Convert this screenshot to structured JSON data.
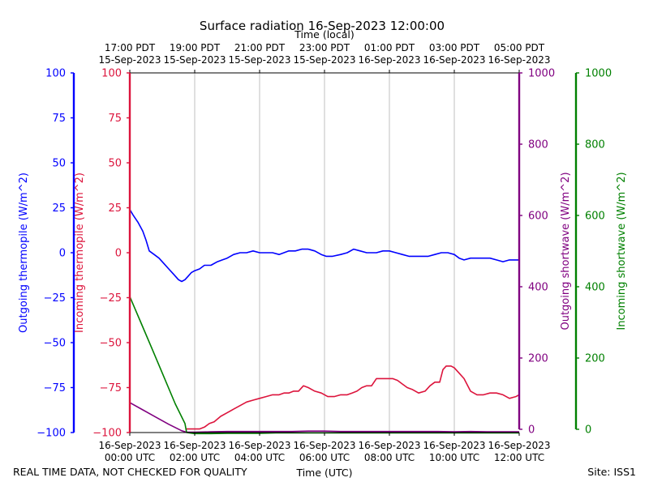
{
  "chart_data": {
    "type": "line",
    "title": "Surface radiation 16-Sep-2023 12:00:00",
    "top_axis_label": "Time (local)",
    "bottom_axis_label": "Time (UTC)",
    "footer_left": "REAL TIME DATA, NOT CHECKED FOR QUALITY",
    "footer_right": "Site: ISS1",
    "xlim_hours_utc": [
      0,
      12
    ],
    "x_ticks_utc": [
      {
        "h": 0,
        "date": "16-Sep-2023",
        "time": "00:00 UTC"
      },
      {
        "h": 2,
        "date": "16-Sep-2023",
        "time": "02:00 UTC"
      },
      {
        "h": 4,
        "date": "16-Sep-2023",
        "time": "04:00 UTC"
      },
      {
        "h": 6,
        "date": "16-Sep-2023",
        "time": "06:00 UTC"
      },
      {
        "h": 8,
        "date": "16-Sep-2023",
        "time": "08:00 UTC"
      },
      {
        "h": 10,
        "date": "16-Sep-2023",
        "time": "10:00 UTC"
      },
      {
        "h": 12,
        "date": "16-Sep-2023",
        "time": "12:00 UTC"
      }
    ],
    "x_ticks_local": [
      {
        "h": 0,
        "time": "17:00 PDT",
        "date": "15-Sep-2023"
      },
      {
        "h": 2,
        "time": "19:00 PDT",
        "date": "15-Sep-2023"
      },
      {
        "h": 4,
        "time": "21:00 PDT",
        "date": "15-Sep-2023"
      },
      {
        "h": 6,
        "time": "23:00 PDT",
        "date": "15-Sep-2023"
      },
      {
        "h": 8,
        "time": "01:00 PDT",
        "date": "16-Sep-2023"
      },
      {
        "h": 10,
        "time": "03:00 PDT",
        "date": "16-Sep-2023"
      },
      {
        "h": 12,
        "time": "05:00 PDT",
        "date": "16-Sep-2023"
      }
    ],
    "axes": [
      {
        "id": "out_thermo",
        "label": "Outgoing thermopile (W/m^2)",
        "color": "#0000ff",
        "ylim": [
          -100,
          100
        ],
        "ticks": [
          -100,
          -75,
          -50,
          -25,
          0,
          25,
          50,
          75,
          100
        ],
        "tick_labels": [
          "−100",
          "−75",
          "−50",
          "−25",
          "0",
          "25",
          "50",
          "75",
          "100"
        ]
      },
      {
        "id": "in_thermo",
        "label": "Incoming thermopile (W/m^2)",
        "color": "#dc143c",
        "ylim": [
          -100,
          100
        ],
        "ticks": [
          -100,
          -75,
          -50,
          -25,
          0,
          25,
          50,
          75,
          100
        ],
        "tick_labels": [
          "−100",
          "−75",
          "−50",
          "−25",
          "0",
          "25",
          "50",
          "75",
          "100"
        ]
      },
      {
        "id": "out_sw",
        "label": "Outgoing shortwave (W/m^2)",
        "color": "#800080",
        "ylim": [
          0,
          1000
        ],
        "ticks": [
          0,
          200,
          400,
          600,
          800,
          1000
        ],
        "tick_labels": [
          "0",
          "200",
          "400",
          "600",
          "800",
          "1000"
        ]
      },
      {
        "id": "in_sw",
        "label": "Incoming shortwave (W/m^2)",
        "color": "#008000",
        "ylim": [
          0,
          1000
        ],
        "ticks": [
          0,
          200,
          400,
          600,
          800,
          1000
        ],
        "tick_labels": [
          "0",
          "200",
          "400",
          "600",
          "800",
          "1000"
        ]
      }
    ],
    "series": [
      {
        "name": "Outgoing thermopile",
        "axis": "out_thermo",
        "color": "#0000ff",
        "x": [
          0,
          0.1,
          0.25,
          0.4,
          0.5,
          0.6,
          0.75,
          0.9,
          1.05,
          1.2,
          1.35,
          1.5,
          1.6,
          1.7,
          1.8,
          1.9,
          2.0,
          2.15,
          2.3,
          2.5,
          2.7,
          2.85,
          3.0,
          3.2,
          3.4,
          3.6,
          3.8,
          4.0,
          4.2,
          4.4,
          4.6,
          4.75,
          4.9,
          5.1,
          5.3,
          5.5,
          5.7,
          5.9,
          6.05,
          6.25,
          6.5,
          6.7,
          6.9,
          7.1,
          7.3,
          7.45,
          7.6,
          7.8,
          8.0,
          8.2,
          8.4,
          8.6,
          8.8,
          9.0,
          9.2,
          9.4,
          9.6,
          9.8,
          10.0,
          10.15,
          10.3,
          10.5,
          10.7,
          10.9,
          11.1,
          11.3,
          11.5,
          11.7,
          11.9,
          12.0
        ],
        "values": [
          24,
          21,
          17,
          12,
          7,
          1,
          -1,
          -3,
          -6,
          -9,
          -12,
          -15,
          -16,
          -15,
          -13,
          -11,
          -10,
          -9,
          -7,
          -7,
          -5,
          -4,
          -3,
          -1,
          0,
          0,
          1,
          0,
          0,
          0,
          -1,
          0,
          1,
          1,
          2,
          2,
          1,
          -1,
          -2,
          -2,
          -1,
          0,
          2,
          1,
          0,
          0,
          0,
          1,
          1,
          0,
          -1,
          -2,
          -2,
          -2,
          -2,
          -1,
          0,
          0,
          -1,
          -3,
          -4,
          -3,
          -3,
          -3,
          -3,
          -4,
          -5,
          -4,
          -4,
          -4
        ]
      },
      {
        "name": "Incoming thermopile",
        "axis": "in_thermo",
        "color": "#dc143c",
        "x": [
          1.75,
          2.0,
          2.15,
          2.3,
          2.45,
          2.6,
          2.8,
          3.0,
          3.2,
          3.4,
          3.6,
          3.8,
          4.0,
          4.2,
          4.4,
          4.6,
          4.75,
          4.9,
          5.05,
          5.2,
          5.35,
          5.5,
          5.7,
          5.9,
          6.1,
          6.3,
          6.5,
          6.7,
          6.85,
          7.0,
          7.15,
          7.3,
          7.45,
          7.6,
          7.8,
          7.95,
          8.1,
          8.25,
          8.4,
          8.55,
          8.7,
          8.9,
          9.1,
          9.25,
          9.4,
          9.55,
          9.65,
          9.75,
          9.9,
          10.0,
          10.15,
          10.3,
          10.5,
          10.7,
          10.9,
          11.1,
          11.3,
          11.5,
          11.7,
          11.9,
          12.0
        ],
        "values": [
          -98,
          -98,
          -98,
          -97,
          -95,
          -94,
          -91,
          -89,
          -87,
          -85,
          -83,
          -82,
          -81,
          -80,
          -79,
          -79,
          -78,
          -78,
          -77,
          -77,
          -74,
          -75,
          -77,
          -78,
          -80,
          -80,
          -79,
          -79,
          -78,
          -77,
          -75,
          -74,
          -74,
          -70,
          -70,
          -70,
          -70,
          -71,
          -73,
          -75,
          -76,
          -78,
          -77,
          -74,
          -72,
          -72,
          -65,
          -63,
          -63,
          -64,
          -67,
          -70,
          -77,
          -79,
          -79,
          -78,
          -78,
          -79,
          -81,
          -80,
          -79
        ]
      },
      {
        "name": "Outgoing shortwave",
        "axis": "out_sw",
        "color": "#800080",
        "x": [
          0,
          0.4,
          0.8,
          1.2,
          1.6,
          1.75,
          2.0,
          2.5,
          3.0,
          4.0,
          4.5,
          5.0,
          5.5,
          6.0,
          6.5,
          7.0,
          7.5,
          8.0,
          8.5,
          9.0,
          9.5,
          10.0,
          10.5,
          11.0,
          11.5,
          12.0
        ],
        "values": [
          83,
          63,
          43,
          23,
          5,
          1,
          1,
          2,
          3,
          3,
          3,
          3,
          4,
          4,
          3,
          3,
          3,
          3,
          3,
          3,
          3,
          2,
          3,
          2,
          2,
          2
        ]
      },
      {
        "name": "Incoming shortwave",
        "axis": "in_sw",
        "color": "#008000",
        "x": [
          0,
          0.35,
          0.7,
          1.05,
          1.4,
          1.7,
          1.75,
          2.0,
          2.5,
          3.0,
          3.5,
          4.0,
          4.5,
          5.0,
          5.5,
          6.0,
          6.5,
          7.0,
          7.5,
          8.0,
          8.5,
          9.0,
          9.5,
          10.0,
          10.5,
          11.0,
          11.5,
          12.0
        ],
        "values": [
          378,
          304,
          230,
          155,
          80,
          25,
          0,
          -3,
          -3,
          -2,
          -2,
          -2,
          -1,
          -1,
          -1,
          -1,
          -1,
          -1,
          -1,
          -1,
          -1,
          -1,
          -1,
          -1,
          -1,
          -1,
          -1,
          -1
        ]
      }
    ]
  }
}
